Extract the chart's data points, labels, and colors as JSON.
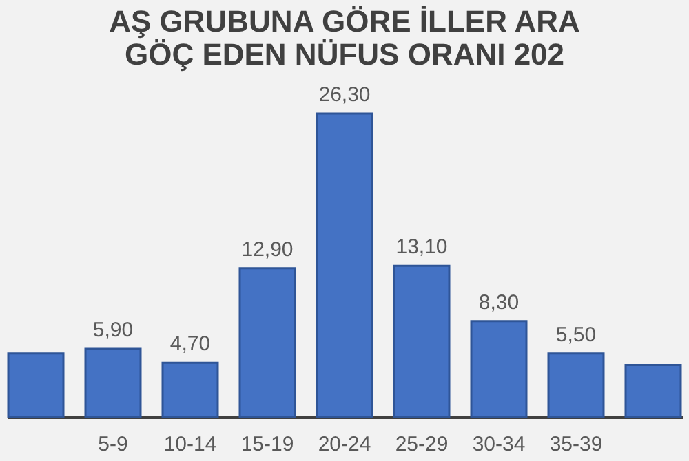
{
  "chart_data": {
    "type": "bar",
    "title": [
      "AŞ GRUBUNA GÖRE İLLER ARA",
      "GÖÇ EDEN NÜFUS ORANI 202"
    ],
    "categories": [
      null,
      "5-9",
      "10-14",
      "15-19",
      "20-24",
      "25-29",
      "30-34",
      "35-39",
      null
    ],
    "values": [
      5.5,
      5.9,
      4.7,
      12.9,
      26.3,
      13.1,
      8.3,
      5.5,
      4.5
    ],
    "value_labels": [
      null,
      "5,90",
      "4,70",
      "12,90",
      "26,30",
      "13,10",
      "8,30",
      "5,50",
      null
    ],
    "color": "#4472c4"
  }
}
